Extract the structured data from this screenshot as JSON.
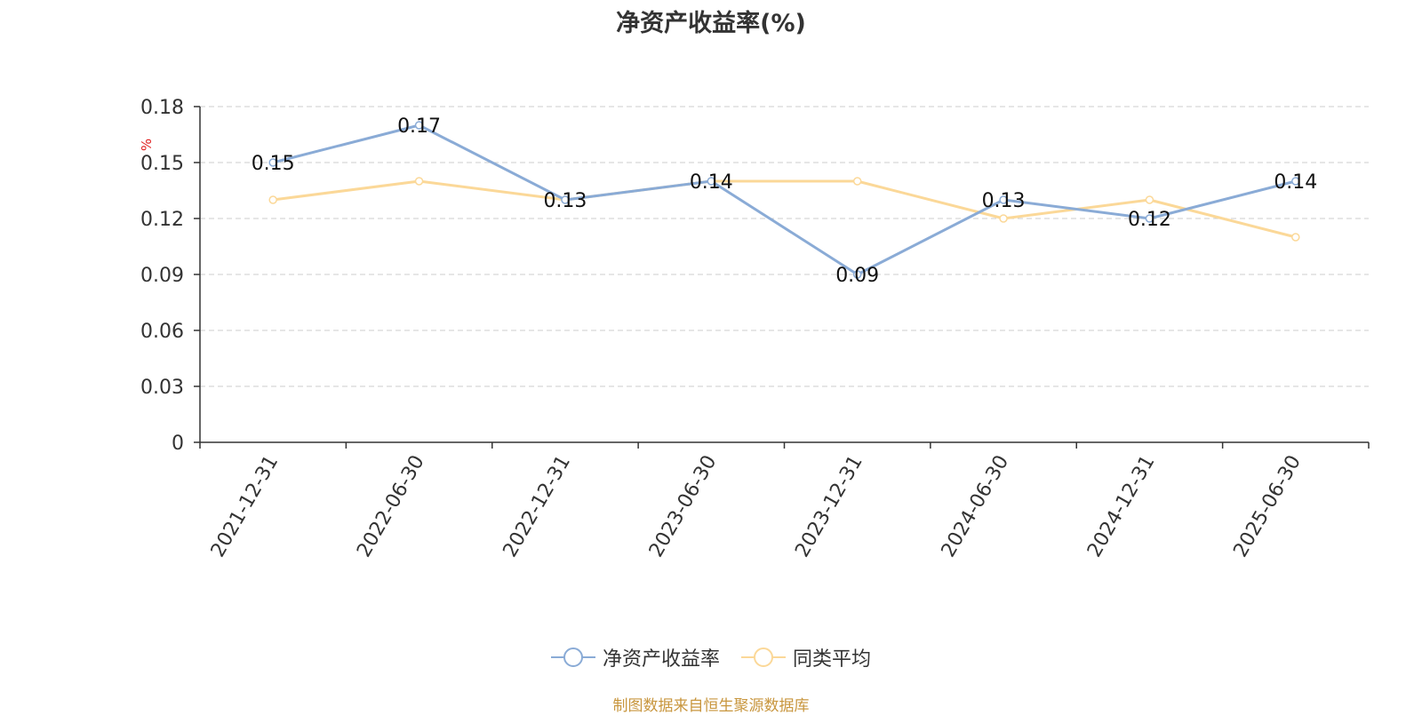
{
  "chart_data": {
    "type": "line",
    "title": "净资产收益率(%)",
    "ylabel": "%",
    "xlabel": "",
    "categories": [
      "2021-12-31",
      "2022-06-30",
      "2022-12-31",
      "2023-06-30",
      "2023-12-31",
      "2024-06-30",
      "2024-12-31",
      "2025-06-30"
    ],
    "ylim": [
      0,
      0.18
    ],
    "yticks": [
      "0",
      "0.03",
      "0.06",
      "0.09",
      "0.12",
      "0.15",
      "0.18"
    ],
    "grid": true,
    "legend_position": "bottom",
    "series": [
      {
        "name": "净资产收益率",
        "color": "#8aabd6",
        "values": [
          0.15,
          0.17,
          0.13,
          0.14,
          0.09,
          0.13,
          0.12,
          0.14
        ],
        "data_labels": [
          "0.15",
          "0.17",
          "0.13",
          "0.14",
          "0.09",
          "0.13",
          "0.12",
          "0.14"
        ]
      },
      {
        "name": "同类平均",
        "color": "#fbd898",
        "values": [
          0.13,
          0.14,
          0.13,
          0.14,
          0.14,
          0.12,
          0.13,
          0.11
        ]
      }
    ],
    "source": "制图数据来自恒生聚源数据库"
  }
}
